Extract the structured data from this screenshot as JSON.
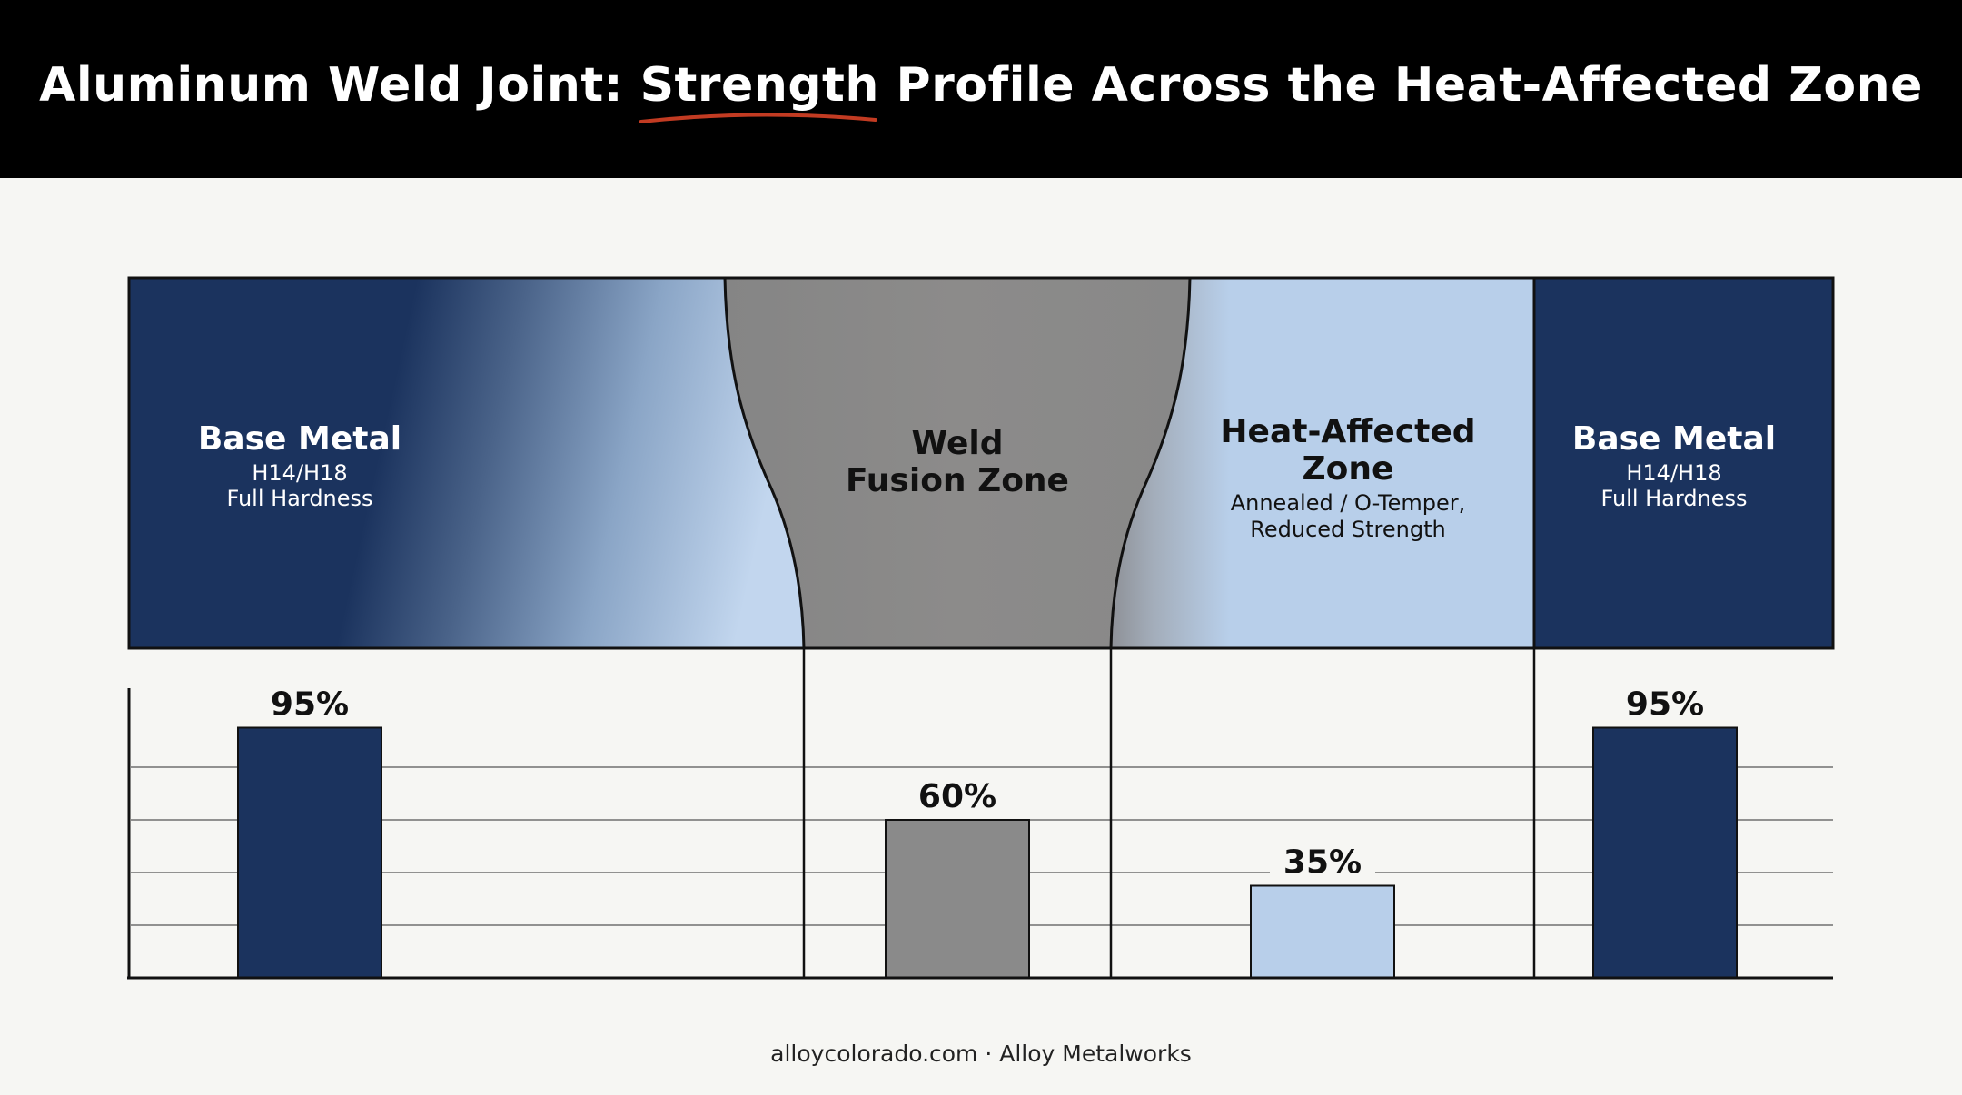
{
  "title": {
    "before": "Aluminum Weld Joint: ",
    "accent": "Strength",
    "after": " Profile Across the Heat-Affected Zone"
  },
  "zones": {
    "base_left": {
      "name": "Base Metal",
      "line1": "H14/H18",
      "line2": "Full Hardness"
    },
    "weld": {
      "name1": "Weld",
      "name2": "Fusion Zone"
    },
    "haz": {
      "name1": "Heat-Affected",
      "name2": "Zone",
      "line1": "Annealed / O-Temper,",
      "line2": "Reduced Strength"
    },
    "base_right": {
      "name": "Base Metal",
      "line1": "H14/H18",
      "line2": "Full Hardness"
    }
  },
  "chart_data": {
    "type": "bar",
    "categories": [
      "Base Metal",
      "Weld Fusion Zone",
      "Heat-Affected Zone",
      "Base Metal"
    ],
    "values": [
      95,
      60,
      35,
      95
    ],
    "data_labels": [
      "95%",
      "60%",
      "35%",
      "95%"
    ],
    "ylim": [
      0,
      100
    ],
    "grid": true
  },
  "colors": {
    "base": "#1b335e",
    "weld": "#8a8a8a",
    "haz": "#b8cfea",
    "accent_underline": "#c23b22"
  },
  "footer": "alloycolorado.com · Alloy Metalworks"
}
